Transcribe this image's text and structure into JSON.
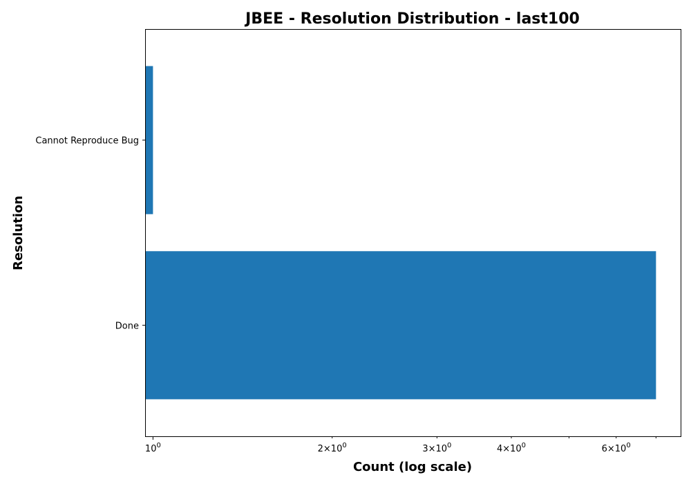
{
  "chart_data": {
    "type": "bar",
    "orientation": "horizontal",
    "title": "JBEE - Resolution Distribution - last100",
    "xlabel": "Count (log scale)",
    "ylabel": "Resolution",
    "x_scale": "log",
    "xlim": [
      0.97,
      7.7
    ],
    "categories": [
      "Cannot Reproduce Bug",
      "Done"
    ],
    "values": [
      1,
      7
    ],
    "bar_color": "#1f77b4",
    "x_major_ticks": [
      {
        "value": 1,
        "base": "10",
        "exp": "0"
      }
    ],
    "x_minor_ticks": [
      {
        "value": 2,
        "mant": "2",
        "base": "10",
        "exp": "0"
      },
      {
        "value": 3,
        "mant": "3",
        "base": "10",
        "exp": "0"
      },
      {
        "value": 4,
        "mant": "4",
        "base": "10",
        "exp": "0"
      },
      {
        "value": 5,
        "mant": "",
        "base": "",
        "exp": ""
      },
      {
        "value": 6,
        "mant": "6",
        "base": "10",
        "exp": "0"
      },
      {
        "value": 7,
        "mant": "",
        "base": "",
        "exp": ""
      }
    ],
    "grid": false,
    "legend": "none"
  }
}
